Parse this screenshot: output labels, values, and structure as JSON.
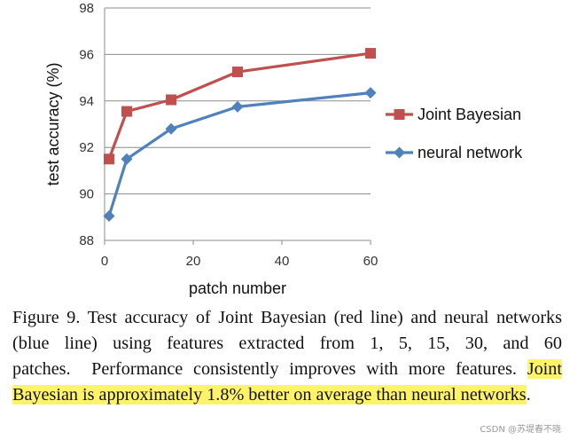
{
  "chart_data": {
    "type": "line",
    "x": [
      1,
      5,
      15,
      30,
      60
    ],
    "series": [
      {
        "name": "Joint Bayesian",
        "values": [
          91.5,
          93.55,
          94.05,
          95.25,
          96.05
        ],
        "color": "#c0504d",
        "marker": "square"
      },
      {
        "name": "neural network",
        "values": [
          89.05,
          91.5,
          92.8,
          93.75,
          94.35
        ],
        "color": "#4f81bd",
        "marker": "diamond"
      }
    ],
    "xlabel": "patch number",
    "ylabel": "test accuracy (%)",
    "xlim": [
      0,
      60
    ],
    "ylim": [
      88,
      98
    ],
    "xticks": [
      "0",
      "20",
      "40",
      "60"
    ],
    "yticks": [
      "88",
      "90",
      "92",
      "94",
      "96",
      "98"
    ],
    "grid": "horizontal",
    "legend_placement": "right"
  },
  "caption": {
    "text_before": "Figure 9. Test accuracy of Joint Bayesian (red line) and neural networks (blue line) using features extracted from 1, 5, 15, 30, and 60 patches.  Performance consistently improves with more features. ",
    "highlighted": "Joint Bayesian is approximately 1.8% better on average than neural networks",
    "text_after": "."
  },
  "watermark": "CSDN @苏堤春不晓"
}
